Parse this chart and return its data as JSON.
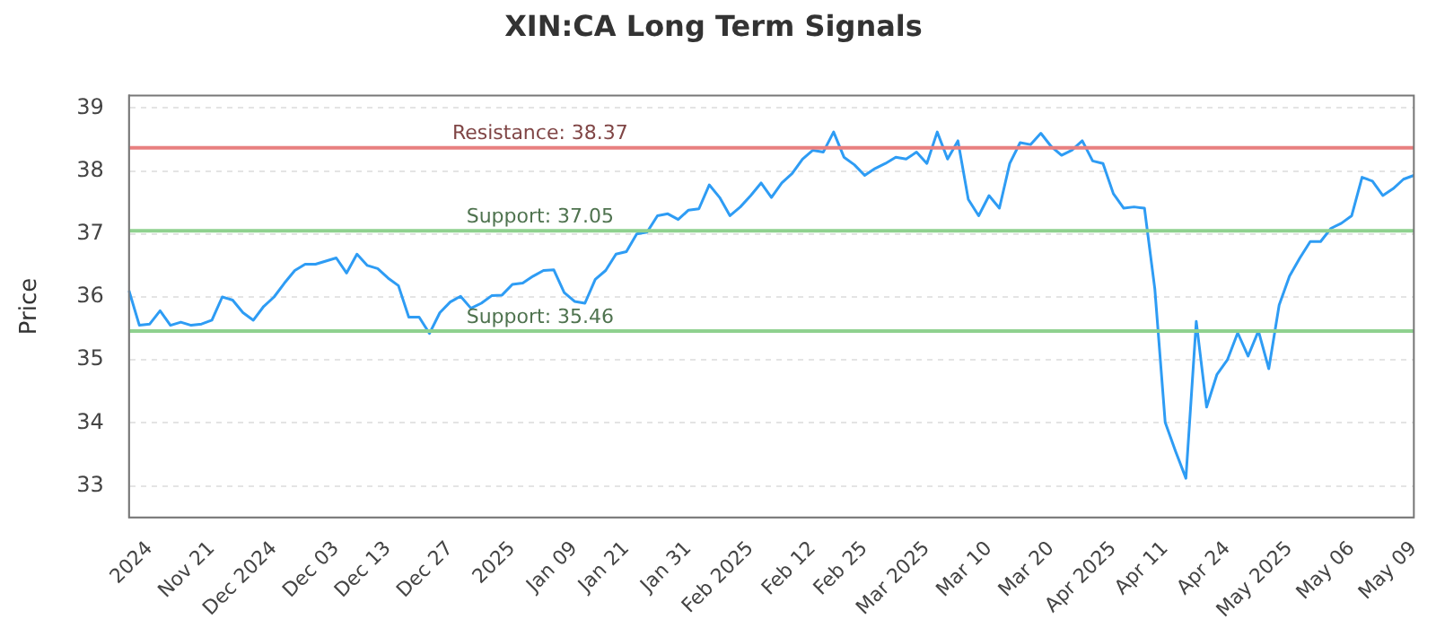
{
  "chart_data": {
    "type": "line",
    "title": "XIN:CA Long Term Signals",
    "ylabel": "Price",
    "categories": [
      null,
      null,
      "2024",
      null,
      null,
      null,
      null,
      null,
      "Nov 21",
      null,
      null,
      null,
      null,
      null,
      "Dec 2024",
      null,
      null,
      null,
      null,
      null,
      "Dec 03",
      null,
      null,
      null,
      null,
      "Dec 13",
      null,
      null,
      null,
      null,
      null,
      "Dec 27",
      null,
      null,
      null,
      null,
      null,
      "2025",
      null,
      null,
      null,
      null,
      null,
      "Jan 09",
      null,
      null,
      null,
      null,
      "Jan 21",
      null,
      null,
      null,
      null,
      null,
      "Jan 31",
      null,
      null,
      null,
      null,
      null,
      "Feb 2025",
      null,
      null,
      null,
      null,
      null,
      "Feb 12",
      null,
      null,
      null,
      null,
      "Feb 25",
      null,
      null,
      null,
      null,
      null,
      "Mar 2025",
      null,
      null,
      null,
      null,
      null,
      "Mar 10",
      null,
      null,
      null,
      null,
      null,
      "Mar 20",
      null,
      null,
      null,
      null,
      null,
      "Apr 2025",
      null,
      null,
      null,
      null,
      "Apr 11",
      null,
      null,
      null,
      null,
      null,
      "Apr 24",
      null,
      null,
      null,
      null,
      null,
      "May 2025",
      null,
      null,
      null,
      null,
      null,
      "May 06",
      null,
      null,
      null,
      null,
      null,
      "May 09"
    ],
    "series": [
      {
        "color": "#2e9cf4",
        "values": [
          36.1,
          35.55,
          35.57,
          35.78,
          35.55,
          35.6,
          35.55,
          35.57,
          35.63,
          36.0,
          35.95,
          35.75,
          35.63,
          35.85,
          36.0,
          36.22,
          36.42,
          36.52,
          36.52,
          36.57,
          36.62,
          36.38,
          36.68,
          36.5,
          36.45,
          36.3,
          36.18,
          35.68,
          35.68,
          35.42,
          35.75,
          35.92,
          36.01,
          35.82,
          35.9,
          36.02,
          36.03,
          36.2,
          36.22,
          36.33,
          36.42,
          36.43,
          36.07,
          35.93,
          35.9,
          36.28,
          36.42,
          36.68,
          36.72,
          37.0,
          37.03,
          37.29,
          37.32,
          37.23,
          37.38,
          37.4,
          37.78,
          37.58,
          37.29,
          37.43,
          37.61,
          37.81,
          37.58,
          37.81,
          37.96,
          38.19,
          38.33,
          38.3,
          38.62,
          38.22,
          38.1,
          37.93,
          38.04,
          38.12,
          38.22,
          38.19,
          38.3,
          38.12,
          38.62,
          38.19,
          38.48,
          37.55,
          37.29,
          37.61,
          37.41,
          38.12,
          38.45,
          38.42,
          38.6,
          38.39,
          38.25,
          38.33,
          38.48,
          38.16,
          38.12,
          37.64,
          37.41,
          37.43,
          37.41,
          36.13,
          34.01,
          33.55,
          33.12,
          35.61,
          34.25,
          34.77,
          35.0,
          35.43,
          35.06,
          35.46,
          34.86,
          35.87,
          36.33,
          36.62,
          36.88,
          36.88,
          37.09,
          37.17,
          37.29,
          37.9,
          37.84,
          37.61,
          37.72,
          37.87,
          37.93
        ]
      }
    ],
    "ylim": [
      32.5,
      39.2
    ],
    "yticks": [
      33,
      34,
      35,
      36,
      37,
      38,
      39
    ],
    "grid": "y",
    "legend": false,
    "marker": "none",
    "ref_lines": [
      {
        "axis": "y",
        "value": 38.37,
        "label": "Resistance: 38.37",
        "color": "#e88080"
      },
      {
        "axis": "y",
        "value": 37.05,
        "label": "Support: 37.05",
        "color": "#8fd18f"
      },
      {
        "axis": "y",
        "value": 35.46,
        "label": "Support: 35.46",
        "color": "#8fd18f"
      }
    ]
  }
}
